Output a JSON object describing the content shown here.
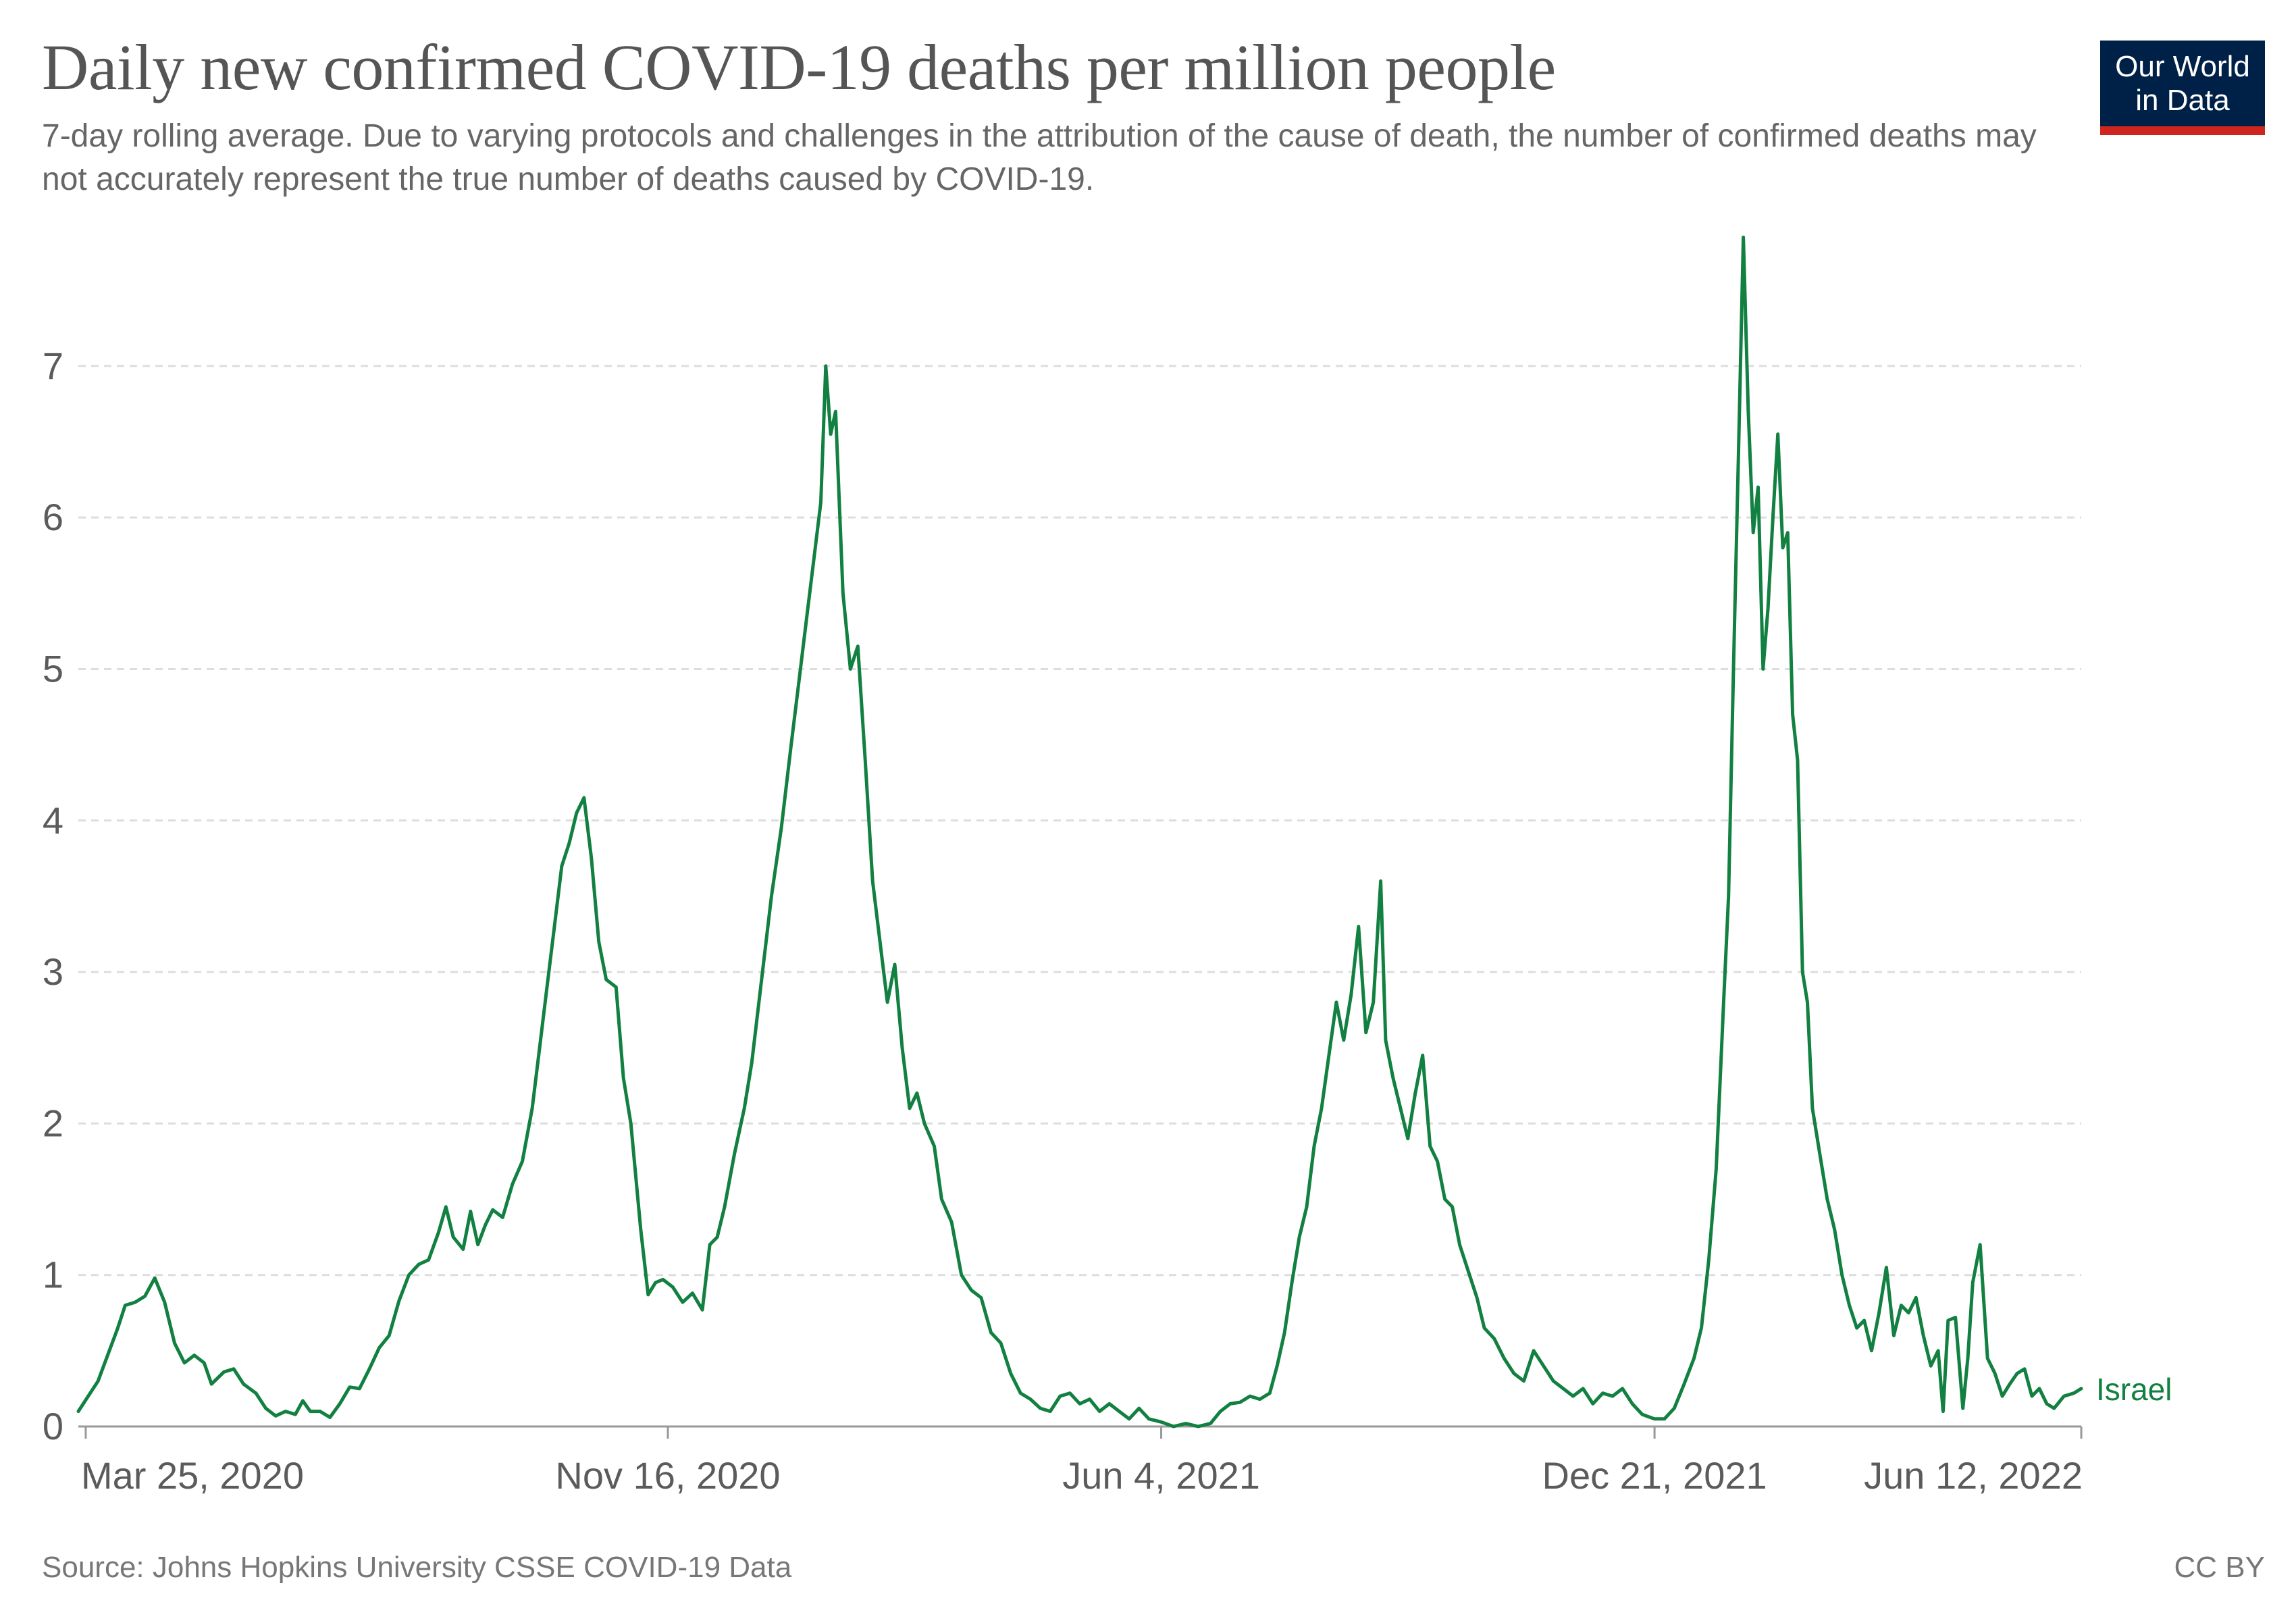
{
  "title": "Daily new confirmed COVID-19 deaths per million people",
  "subtitle": "7-day rolling average. Due to varying protocols and challenges in the attribution of the cause of death, the number of confirmed deaths may not accurately represent the true number of deaths caused by COVID-19.",
  "logo": {
    "line1": "Our World",
    "line2": "in Data"
  },
  "footer": {
    "source": "Source: Johns Hopkins University CSSE COVID-19 Data",
    "license": "CC BY"
  },
  "colors": {
    "series": "#118040",
    "grid": "#dddddd",
    "axis_text": "#5b5b5b",
    "logo_bg": "#002147",
    "logo_accent": "#ce261e"
  },
  "chart_data": {
    "type": "line",
    "title": "Daily new confirmed COVID-19 deaths per million people",
    "x_range": [
      "2020-03-22",
      "2022-06-12"
    ],
    "ylim": [
      0,
      7.9
    ],
    "y_ticks": [
      0,
      1,
      2,
      3,
      4,
      5,
      6,
      7
    ],
    "x_ticks": [
      {
        "date": "2020-03-25",
        "label": "Mar 25, 2020"
      },
      {
        "date": "2020-11-16",
        "label": "Nov 16, 2020"
      },
      {
        "date": "2021-06-04",
        "label": "Jun 4, 2021"
      },
      {
        "date": "2021-12-21",
        "label": "Dec 21, 2021"
      },
      {
        "date": "2022-06-12",
        "label": "Jun 12, 2022"
      }
    ],
    "grid": "horizontal dashed",
    "series": [
      {
        "name": "Israel",
        "color": "#118040",
        "label_position": "end of line",
        "points": [
          [
            "2020-03-22",
            0.1
          ],
          [
            "2020-03-30",
            0.3
          ],
          [
            "2020-04-07",
            0.65
          ],
          [
            "2020-04-10",
            0.8
          ],
          [
            "2020-04-14",
            0.82
          ],
          [
            "2020-04-18",
            0.86
          ],
          [
            "2020-04-22",
            0.98
          ],
          [
            "2020-04-26",
            0.82
          ],
          [
            "2020-04-30",
            0.55
          ],
          [
            "2020-05-04",
            0.42
          ],
          [
            "2020-05-08",
            0.47
          ],
          [
            "2020-05-12",
            0.42
          ],
          [
            "2020-05-15",
            0.28
          ],
          [
            "2020-05-20",
            0.36
          ],
          [
            "2020-05-24",
            0.38
          ],
          [
            "2020-05-28",
            0.28
          ],
          [
            "2020-06-02",
            0.22
          ],
          [
            "2020-06-06",
            0.12
          ],
          [
            "2020-06-10",
            0.07
          ],
          [
            "2020-06-14",
            0.1
          ],
          [
            "2020-06-18",
            0.08
          ],
          [
            "2020-06-21",
            0.17
          ],
          [
            "2020-06-24",
            0.1
          ],
          [
            "2020-06-28",
            0.1
          ],
          [
            "2020-07-02",
            0.06
          ],
          [
            "2020-07-06",
            0.15
          ],
          [
            "2020-07-10",
            0.26
          ],
          [
            "2020-07-14",
            0.25
          ],
          [
            "2020-07-18",
            0.38
          ],
          [
            "2020-07-22",
            0.52
          ],
          [
            "2020-07-26",
            0.6
          ],
          [
            "2020-07-30",
            0.83
          ],
          [
            "2020-08-03",
            1.0
          ],
          [
            "2020-08-07",
            1.07
          ],
          [
            "2020-08-11",
            1.1
          ],
          [
            "2020-08-15",
            1.28
          ],
          [
            "2020-08-18",
            1.45
          ],
          [
            "2020-08-21",
            1.25
          ],
          [
            "2020-08-25",
            1.17
          ],
          [
            "2020-08-28",
            1.42
          ],
          [
            "2020-08-31",
            1.2
          ],
          [
            "2020-09-03",
            1.33
          ],
          [
            "2020-09-06",
            1.43
          ],
          [
            "2020-09-10",
            1.38
          ],
          [
            "2020-09-14",
            1.6
          ],
          [
            "2020-09-18",
            1.75
          ],
          [
            "2020-09-22",
            2.1
          ],
          [
            "2020-09-25",
            2.5
          ],
          [
            "2020-09-28",
            2.9
          ],
          [
            "2020-10-01",
            3.3
          ],
          [
            "2020-10-04",
            3.7
          ],
          [
            "2020-10-07",
            3.85
          ],
          [
            "2020-10-10",
            4.05
          ],
          [
            "2020-10-13",
            4.15
          ],
          [
            "2020-10-16",
            3.75
          ],
          [
            "2020-10-19",
            3.2
          ],
          [
            "2020-10-22",
            2.95
          ],
          [
            "2020-10-26",
            2.9
          ],
          [
            "2020-10-29",
            2.3
          ],
          [
            "2020-11-01",
            2.0
          ],
          [
            "2020-11-05",
            1.3
          ],
          [
            "2020-11-08",
            0.87
          ],
          [
            "2020-11-11",
            0.95
          ],
          [
            "2020-11-14",
            0.97
          ],
          [
            "2020-11-18",
            0.92
          ],
          [
            "2020-11-22",
            0.82
          ],
          [
            "2020-11-26",
            0.88
          ],
          [
            "2020-11-30",
            0.77
          ],
          [
            "2020-12-03",
            1.2
          ],
          [
            "2020-12-06",
            1.25
          ],
          [
            "2020-12-09",
            1.45
          ],
          [
            "2020-12-13",
            1.8
          ],
          [
            "2020-12-17",
            2.1
          ],
          [
            "2020-12-20",
            2.4
          ],
          [
            "2020-12-24",
            2.95
          ],
          [
            "2020-12-28",
            3.5
          ],
          [
            "2021-01-01",
            3.95
          ],
          [
            "2021-01-05",
            4.5
          ],
          [
            "2021-01-08",
            4.9
          ],
          [
            "2021-01-11",
            5.3
          ],
          [
            "2021-01-14",
            5.7
          ],
          [
            "2021-01-17",
            6.1
          ],
          [
            "2021-01-19",
            7.0
          ],
          [
            "2021-01-21",
            6.55
          ],
          [
            "2021-01-23",
            6.7
          ],
          [
            "2021-01-26",
            5.5
          ],
          [
            "2021-01-29",
            5.0
          ],
          [
            "2021-02-01",
            5.15
          ],
          [
            "2021-02-04",
            4.4
          ],
          [
            "2021-02-07",
            3.6
          ],
          [
            "2021-02-10",
            3.2
          ],
          [
            "2021-02-13",
            2.8
          ],
          [
            "2021-02-16",
            3.05
          ],
          [
            "2021-02-19",
            2.5
          ],
          [
            "2021-02-22",
            2.1
          ],
          [
            "2021-02-25",
            2.2
          ],
          [
            "2021-02-28",
            2.0
          ],
          [
            "2021-03-04",
            1.85
          ],
          [
            "2021-03-07",
            1.5
          ],
          [
            "2021-03-11",
            1.35
          ],
          [
            "2021-03-15",
            1.0
          ],
          [
            "2021-03-19",
            0.9
          ],
          [
            "2021-03-23",
            0.85
          ],
          [
            "2021-03-27",
            0.62
          ],
          [
            "2021-03-31",
            0.55
          ],
          [
            "2021-04-04",
            0.35
          ],
          [
            "2021-04-08",
            0.22
          ],
          [
            "2021-04-12",
            0.18
          ],
          [
            "2021-04-16",
            0.12
          ],
          [
            "2021-04-20",
            0.1
          ],
          [
            "2021-04-24",
            0.2
          ],
          [
            "2021-04-28",
            0.22
          ],
          [
            "2021-05-02",
            0.15
          ],
          [
            "2021-05-06",
            0.18
          ],
          [
            "2021-05-10",
            0.1
          ],
          [
            "2021-05-14",
            0.15
          ],
          [
            "2021-05-18",
            0.1
          ],
          [
            "2021-05-22",
            0.05
          ],
          [
            "2021-05-26",
            0.12
          ],
          [
            "2021-05-30",
            0.05
          ],
          [
            "2021-06-04",
            0.03
          ],
          [
            "2021-06-09",
            0.0
          ],
          [
            "2021-06-14",
            0.02
          ],
          [
            "2021-06-19",
            0.0
          ],
          [
            "2021-06-24",
            0.02
          ],
          [
            "2021-06-28",
            0.1
          ],
          [
            "2021-07-02",
            0.15
          ],
          [
            "2021-07-06",
            0.16
          ],
          [
            "2021-07-10",
            0.2
          ],
          [
            "2021-07-14",
            0.18
          ],
          [
            "2021-07-18",
            0.22
          ],
          [
            "2021-07-21",
            0.4
          ],
          [
            "2021-07-24",
            0.62
          ],
          [
            "2021-07-27",
            0.95
          ],
          [
            "2021-07-30",
            1.25
          ],
          [
            "2021-08-02",
            1.45
          ],
          [
            "2021-08-05",
            1.85
          ],
          [
            "2021-08-08",
            2.1
          ],
          [
            "2021-08-11",
            2.45
          ],
          [
            "2021-08-14",
            2.8
          ],
          [
            "2021-08-17",
            2.55
          ],
          [
            "2021-08-20",
            2.85
          ],
          [
            "2021-08-23",
            3.3
          ],
          [
            "2021-08-26",
            2.6
          ],
          [
            "2021-08-29",
            2.8
          ],
          [
            "2021-09-01",
            3.6
          ],
          [
            "2021-09-03",
            2.55
          ],
          [
            "2021-09-06",
            2.3
          ],
          [
            "2021-09-09",
            2.1
          ],
          [
            "2021-09-12",
            1.9
          ],
          [
            "2021-09-15",
            2.2
          ],
          [
            "2021-09-18",
            2.45
          ],
          [
            "2021-09-21",
            1.85
          ],
          [
            "2021-09-24",
            1.75
          ],
          [
            "2021-09-27",
            1.5
          ],
          [
            "2021-09-30",
            1.45
          ],
          [
            "2021-10-03",
            1.2
          ],
          [
            "2021-10-07",
            1.0
          ],
          [
            "2021-10-10",
            0.85
          ],
          [
            "2021-10-13",
            0.65
          ],
          [
            "2021-10-17",
            0.58
          ],
          [
            "2021-10-21",
            0.45
          ],
          [
            "2021-10-25",
            0.35
          ],
          [
            "2021-10-29",
            0.3
          ],
          [
            "2021-11-02",
            0.5
          ],
          [
            "2021-11-06",
            0.4
          ],
          [
            "2021-11-10",
            0.3
          ],
          [
            "2021-11-14",
            0.25
          ],
          [
            "2021-11-18",
            0.2
          ],
          [
            "2021-11-22",
            0.25
          ],
          [
            "2021-11-26",
            0.15
          ],
          [
            "2021-11-30",
            0.22
          ],
          [
            "2021-12-04",
            0.2
          ],
          [
            "2021-12-08",
            0.25
          ],
          [
            "2021-12-12",
            0.15
          ],
          [
            "2021-12-16",
            0.08
          ],
          [
            "2021-12-21",
            0.05
          ],
          [
            "2021-12-25",
            0.05
          ],
          [
            "2021-12-29",
            0.12
          ],
          [
            "2022-01-02",
            0.28
          ],
          [
            "2022-01-06",
            0.45
          ],
          [
            "2022-01-09",
            0.65
          ],
          [
            "2022-01-12",
            1.1
          ],
          [
            "2022-01-15",
            1.7
          ],
          [
            "2022-01-18",
            2.8
          ],
          [
            "2022-01-20",
            3.5
          ],
          [
            "2022-01-22",
            5.0
          ],
          [
            "2022-01-24",
            6.4
          ],
          [
            "2022-01-26",
            7.85
          ],
          [
            "2022-01-28",
            6.7
          ],
          [
            "2022-01-30",
            5.9
          ],
          [
            "2022-02-01",
            6.2
          ],
          [
            "2022-02-03",
            5.0
          ],
          [
            "2022-02-05",
            5.4
          ],
          [
            "2022-02-07",
            6.0
          ],
          [
            "2022-02-09",
            6.55
          ],
          [
            "2022-02-11",
            5.8
          ],
          [
            "2022-02-13",
            5.9
          ],
          [
            "2022-02-15",
            4.7
          ],
          [
            "2022-02-17",
            4.4
          ],
          [
            "2022-02-19",
            3.0
          ],
          [
            "2022-02-21",
            2.8
          ],
          [
            "2022-02-23",
            2.1
          ],
          [
            "2022-02-26",
            1.8
          ],
          [
            "2022-03-01",
            1.5
          ],
          [
            "2022-03-04",
            1.3
          ],
          [
            "2022-03-07",
            1.0
          ],
          [
            "2022-03-10",
            0.8
          ],
          [
            "2022-03-13",
            0.65
          ],
          [
            "2022-03-16",
            0.7
          ],
          [
            "2022-03-19",
            0.5
          ],
          [
            "2022-03-22",
            0.75
          ],
          [
            "2022-03-25",
            1.05
          ],
          [
            "2022-03-28",
            0.6
          ],
          [
            "2022-03-31",
            0.8
          ],
          [
            "2022-04-03",
            0.75
          ],
          [
            "2022-04-06",
            0.85
          ],
          [
            "2022-04-09",
            0.6
          ],
          [
            "2022-04-12",
            0.4
          ],
          [
            "2022-04-15",
            0.5
          ],
          [
            "2022-04-17",
            0.1
          ],
          [
            "2022-04-19",
            0.7
          ],
          [
            "2022-04-22",
            0.72
          ],
          [
            "2022-04-25",
            0.12
          ],
          [
            "2022-04-27",
            0.45
          ],
          [
            "2022-04-29",
            0.95
          ],
          [
            "2022-05-02",
            1.2
          ],
          [
            "2022-05-05",
            0.45
          ],
          [
            "2022-05-08",
            0.35
          ],
          [
            "2022-05-11",
            0.2
          ],
          [
            "2022-05-14",
            0.28
          ],
          [
            "2022-05-17",
            0.35
          ],
          [
            "2022-05-20",
            0.38
          ],
          [
            "2022-05-23",
            0.2
          ],
          [
            "2022-05-26",
            0.25
          ],
          [
            "2022-05-29",
            0.15
          ],
          [
            "2022-06-01",
            0.12
          ],
          [
            "2022-06-05",
            0.2
          ],
          [
            "2022-06-09",
            0.22
          ],
          [
            "2022-06-12",
            0.25
          ]
        ]
      }
    ]
  }
}
